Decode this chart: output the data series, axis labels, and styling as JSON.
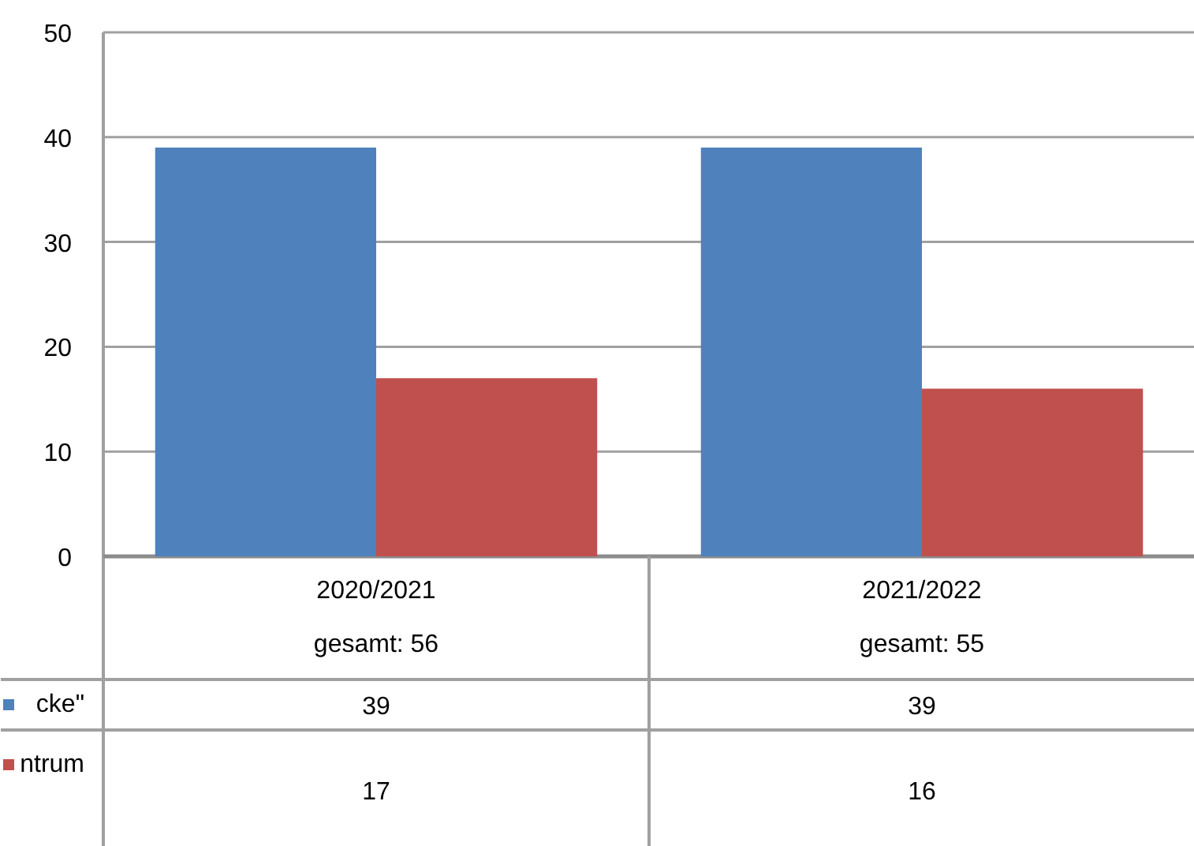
{
  "chart_data": {
    "type": "bar",
    "categories": [
      "2020/2021",
      "2021/2022"
    ],
    "series": [
      {
        "name": "cke\"",
        "color": "#4f81bd",
        "values": [
          39,
          39
        ]
      },
      {
        "name": "ntrum",
        "color": "#c0504d",
        "values": [
          17,
          16
        ]
      }
    ],
    "totals": [
      "gesamt: 56",
      "gesamt: 55"
    ],
    "data_labels": true,
    "legend": "bottom left",
    "ylim": [
      0,
      50
    ],
    "yticks": [
      0,
      10,
      20,
      30,
      40,
      50
    ],
    "grid": "y"
  }
}
